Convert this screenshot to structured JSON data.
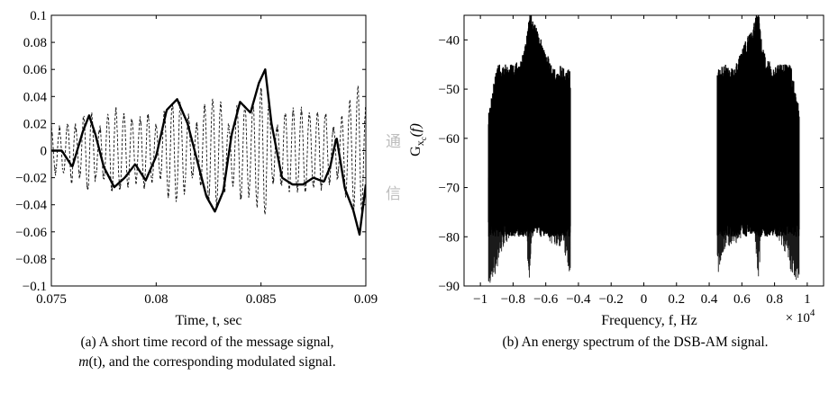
{
  "chart_data": [
    {
      "type": "line",
      "xlabel": "Time, t, sec",
      "ylabel": "",
      "xlim": [
        0.075,
        0.09
      ],
      "ylim": [
        -0.1,
        0.1
      ],
      "xticks": [
        "0.075",
        "0.08",
        "0.085",
        "0.09"
      ],
      "yticks": [
        "0.1",
        "0.08",
        "0.06",
        "0.04",
        "0.02",
        "0",
        "−0.02",
        "−0.04",
        "−0.06",
        "−0.08",
        "−0.1"
      ],
      "caption_line1": "(a) A short time record of the message signal,",
      "caption_line2_italic": "m",
      "caption_line2_paren": "(t)",
      "caption_line2_rest": ", and the corresponding modulated signal.",
      "series": [
        {
          "style": "solid-thick",
          "x": [
            0.075,
            0.0755,
            0.076,
            0.0765,
            0.0768,
            0.0771,
            0.0775,
            0.078,
            0.0785,
            0.079,
            0.0795,
            0.08,
            0.0805,
            0.081,
            0.0815,
            0.082,
            0.0824,
            0.0828,
            0.0832,
            0.0836,
            0.084,
            0.0845,
            0.0849,
            0.0852,
            0.0855,
            0.086,
            0.0865,
            0.087,
            0.0875,
            0.088,
            0.0883,
            0.0886,
            0.089,
            0.0894,
            0.0897,
            0.09
          ],
          "values": [
            0.0,
            0.0,
            -0.012,
            0.014,
            0.026,
            0.012,
            -0.012,
            -0.027,
            -0.02,
            -0.01,
            -0.022,
            -0.004,
            0.03,
            0.038,
            0.02,
            -0.01,
            -0.034,
            -0.045,
            -0.03,
            0.012,
            0.036,
            0.028,
            0.05,
            0.06,
            0.02,
            -0.02,
            -0.025,
            -0.025,
            -0.02,
            -0.023,
            -0.012,
            0.01,
            -0.028,
            -0.044,
            -0.062,
            -0.025
          ]
        },
        {
          "style": "dashed-oscillating-carrier",
          "x": [
            0.075,
            0.0755,
            0.076,
            0.0765,
            0.0768,
            0.0771,
            0.0775,
            0.078,
            0.0785,
            0.079,
            0.0795,
            0.08,
            0.0805,
            0.081,
            0.0815,
            0.082,
            0.0824,
            0.0828,
            0.0832,
            0.0836,
            0.084,
            0.0845,
            0.0849,
            0.0852,
            0.0855,
            0.086,
            0.0865,
            0.087,
            0.0875,
            0.088,
            0.0883,
            0.0886,
            0.089,
            0.0894,
            0.0897,
            0.09
          ],
          "values": [
            0.0,
            0.0,
            -0.012,
            0.014,
            0.026,
            0.012,
            -0.012,
            -0.027,
            -0.02,
            -0.01,
            -0.022,
            -0.004,
            0.03,
            0.038,
            0.02,
            -0.01,
            -0.034,
            -0.045,
            -0.03,
            0.012,
            0.036,
            0.028,
            0.05,
            0.06,
            0.02,
            -0.02,
            -0.025,
            -0.025,
            -0.02,
            -0.023,
            -0.012,
            0.01,
            -0.028,
            -0.044,
            -0.062,
            -0.025
          ]
        }
      ]
    },
    {
      "type": "line",
      "xlabel": "Frequency, f, Hz",
      "ylabel_main": "G",
      "ylabel_sub": "x",
      "ylabel_subsub": "c",
      "ylabel_arg": "(f)",
      "xlim": [
        -1.1,
        1.1
      ],
      "ylim": [
        -90,
        -35
      ],
      "xticks": [
        "−1",
        "−0.8",
        "−0.6",
        "−0.4",
        "−0.2",
        "0",
        "0.2",
        "0.4",
        "0.6",
        "0.8",
        "1"
      ],
      "yticks": [
        "−40",
        "−50",
        "−60",
        "−70",
        "−80",
        "−90"
      ],
      "x_multiplier_base": "× 10",
      "x_multiplier_exp": "4",
      "caption": "(b) An energy spectrum of the DSB-AM signal.",
      "series": [
        {
          "style": "solid-dense-spectrum",
          "x": [
            -0.95,
            -0.9,
            -0.85,
            -0.8,
            -0.75,
            -0.72,
            -0.7,
            -0.68,
            -0.65,
            -0.6,
            -0.55,
            -0.5,
            -0.45,
            0.45,
            0.5,
            0.55,
            0.6,
            0.65,
            0.68,
            0.7,
            0.72,
            0.75,
            0.8,
            0.85,
            0.9,
            0.95
          ],
          "peak": [
            -66,
            -57,
            -57,
            -57,
            -56,
            -52,
            -45,
            -48,
            -50,
            -54,
            -58,
            -57,
            -58,
            -58,
            -57,
            -58,
            -54,
            -50,
            -48,
            -45,
            -52,
            -56,
            -57,
            -57,
            -57,
            -66
          ],
          "low": [
            -90,
            -87,
            -82,
            -80,
            -78,
            -80,
            -90,
            -80,
            -79,
            -80,
            -82,
            -82,
            -88,
            -88,
            -82,
            -82,
            -80,
            -79,
            -80,
            -90,
            -80,
            -78,
            -80,
            -82,
            -87,
            -90
          ]
        }
      ]
    }
  ],
  "watermark": {
    "line1": "通",
    "line2": "信"
  }
}
